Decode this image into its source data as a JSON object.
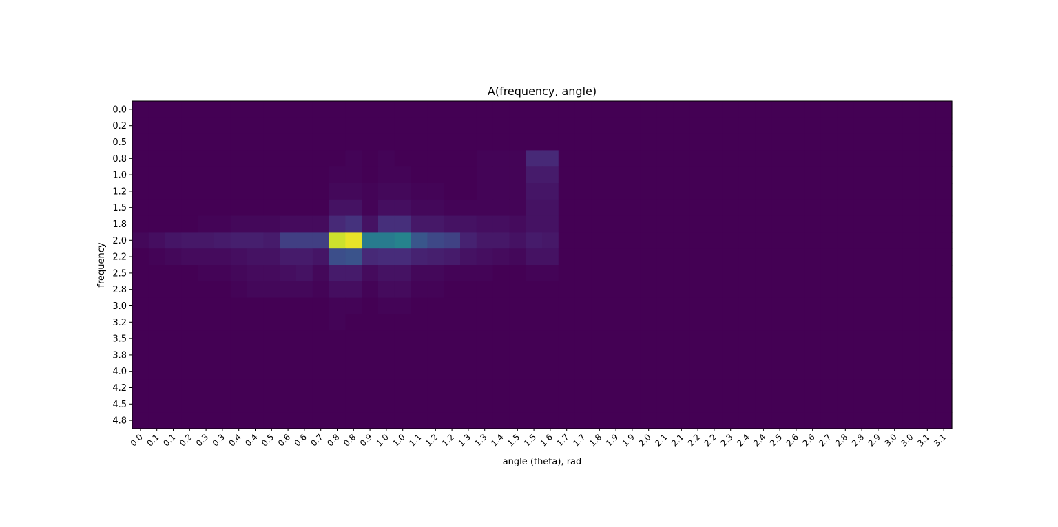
{
  "chart_data": {
    "type": "heatmap",
    "title": "A(frequency, angle)",
    "xlabel": "angle (theta), rad",
    "ylabel": "frequency",
    "colormap": "viridis",
    "x_tick_labels": [
      "0.0",
      "0.1",
      "0.1",
      "0.2",
      "0.3",
      "0.3",
      "0.4",
      "0.4",
      "0.5",
      "0.6",
      "0.6",
      "0.7",
      "0.8",
      "0.8",
      "0.9",
      "1.0",
      "1.0",
      "1.1",
      "1.2",
      "1.2",
      "1.3",
      "1.3",
      "1.4",
      "1.5",
      "1.5",
      "1.6",
      "1.7",
      "1.7",
      "1.8",
      "1.9",
      "1.9",
      "2.0",
      "2.1",
      "2.1",
      "2.2",
      "2.2",
      "2.3",
      "2.4",
      "2.4",
      "2.5",
      "2.6",
      "2.6",
      "2.7",
      "2.8",
      "2.8",
      "2.9",
      "3.0",
      "3.0",
      "3.1",
      "3.1"
    ],
    "y_tick_labels": [
      "0.0",
      "0.2",
      "0.5",
      "0.8",
      "1.0",
      "1.2",
      "1.5",
      "1.8",
      "2.0",
      "2.2",
      "2.5",
      "2.8",
      "3.0",
      "3.2",
      "3.5",
      "3.8",
      "4.0",
      "4.2",
      "4.5",
      "4.8"
    ],
    "value_range": [
      0,
      1
    ],
    "values": [
      [
        0,
        0,
        0,
        0,
        0,
        0,
        0,
        0,
        0,
        0,
        0,
        0,
        0,
        0,
        0,
        0,
        0,
        0,
        0,
        0,
        0,
        0,
        0,
        0,
        0,
        0,
        0,
        0,
        0,
        0,
        0,
        0,
        0,
        0,
        0,
        0,
        0,
        0,
        0,
        0,
        0,
        0,
        0,
        0,
        0,
        0,
        0,
        0,
        0,
        0
      ],
      [
        0,
        0,
        0,
        0,
        0,
        0,
        0,
        0,
        0,
        0,
        0,
        0,
        0,
        0,
        0,
        0,
        0,
        0,
        0,
        0,
        0,
        0,
        0,
        0,
        0,
        0,
        0,
        0,
        0,
        0,
        0,
        0,
        0,
        0,
        0,
        0,
        0,
        0,
        0,
        0,
        0,
        0,
        0,
        0,
        0,
        0,
        0,
        0,
        0,
        0
      ],
      [
        0,
        0,
        0,
        0,
        0,
        0,
        0,
        0,
        0,
        0,
        0,
        0,
        0,
        0,
        0,
        0,
        0,
        0,
        0,
        0,
        0,
        0,
        0,
        0,
        0,
        0,
        0,
        0,
        0,
        0,
        0,
        0,
        0,
        0,
        0,
        0,
        0,
        0,
        0,
        0,
        0,
        0,
        0,
        0,
        0,
        0,
        0,
        0,
        0,
        0
      ],
      [
        0,
        0,
        0,
        0,
        0,
        0,
        0,
        0,
        0,
        0,
        0,
        0,
        0,
        0.01,
        0,
        0.01,
        0,
        0,
        0,
        0,
        0,
        0.01,
        0.01,
        0.01,
        0.12,
        0.12,
        0,
        0,
        0,
        0,
        0,
        0,
        0,
        0,
        0,
        0,
        0,
        0,
        0,
        0,
        0,
        0,
        0,
        0,
        0,
        0,
        0,
        0,
        0,
        0
      ],
      [
        0,
        0,
        0,
        0,
        0,
        0,
        0,
        0,
        0,
        0,
        0,
        0,
        0.01,
        0.01,
        0,
        0.01,
        0.01,
        0,
        0,
        0,
        0,
        0.01,
        0.01,
        0.01,
        0.08,
        0.08,
        0,
        0,
        0,
        0,
        0,
        0,
        0,
        0,
        0,
        0,
        0,
        0,
        0,
        0,
        0,
        0,
        0,
        0,
        0,
        0,
        0,
        0,
        0,
        0
      ],
      [
        0,
        0,
        0,
        0,
        0,
        0,
        0,
        0,
        0,
        0,
        0,
        0,
        0.02,
        0.02,
        0.01,
        0.02,
        0.02,
        0.01,
        0.01,
        0,
        0,
        0.01,
        0.01,
        0.01,
        0.06,
        0.06,
        0,
        0,
        0,
        0,
        0,
        0,
        0,
        0,
        0,
        0,
        0,
        0,
        0,
        0,
        0,
        0,
        0,
        0,
        0,
        0,
        0,
        0,
        0,
        0
      ],
      [
        0,
        0,
        0,
        0,
        0,
        0,
        0,
        0,
        0,
        0,
        0,
        0,
        0.05,
        0.05,
        0.01,
        0.04,
        0.04,
        0.02,
        0.02,
        0.01,
        0.01,
        0.01,
        0.01,
        0.01,
        0.05,
        0.05,
        0,
        0,
        0,
        0,
        0,
        0,
        0,
        0,
        0,
        0,
        0,
        0,
        0,
        0,
        0,
        0,
        0,
        0,
        0,
        0,
        0,
        0,
        0,
        0
      ],
      [
        0,
        0,
        0,
        0,
        0.01,
        0.01,
        0.02,
        0.02,
        0.02,
        0.03,
        0.03,
        0.03,
        0.12,
        0.15,
        0.05,
        0.14,
        0.14,
        0.07,
        0.07,
        0.05,
        0.05,
        0.04,
        0.04,
        0.03,
        0.05,
        0.05,
        0,
        0,
        0,
        0,
        0,
        0,
        0,
        0,
        0,
        0,
        0,
        0,
        0,
        0,
        0,
        0,
        0,
        0,
        0,
        0,
        0,
        0,
        0,
        0
      ],
      [
        0.02,
        0.04,
        0.06,
        0.07,
        0.07,
        0.08,
        0.09,
        0.09,
        0.08,
        0.19,
        0.19,
        0.19,
        0.93,
        0.97,
        0.42,
        0.42,
        0.45,
        0.27,
        0.22,
        0.2,
        0.1,
        0.07,
        0.07,
        0.05,
        0.08,
        0.07,
        0,
        0,
        0,
        0,
        0,
        0,
        0,
        0,
        0,
        0,
        0,
        0,
        0,
        0,
        0,
        0,
        0,
        0,
        0,
        0,
        0,
        0,
        0,
        0
      ],
      [
        0,
        0.01,
        0.02,
        0.03,
        0.03,
        0.03,
        0.04,
        0.05,
        0.05,
        0.08,
        0.08,
        0.06,
        0.24,
        0.26,
        0.12,
        0.13,
        0.13,
        0.1,
        0.09,
        0.08,
        0.05,
        0.04,
        0.03,
        0.02,
        0.05,
        0.05,
        0,
        0,
        0,
        0,
        0,
        0,
        0,
        0,
        0,
        0,
        0,
        0,
        0,
        0,
        0,
        0,
        0,
        0,
        0,
        0,
        0,
        0,
        0,
        0
      ],
      [
        0,
        0,
        0,
        0,
        0.01,
        0.01,
        0.02,
        0.03,
        0.03,
        0.04,
        0.05,
        0.02,
        0.08,
        0.08,
        0.03,
        0.05,
        0.05,
        0.02,
        0.02,
        0.01,
        0.01,
        0.01,
        0,
        0,
        0.01,
        0.01,
        0,
        0,
        0,
        0,
        0,
        0,
        0,
        0,
        0,
        0,
        0,
        0,
        0,
        0,
        0,
        0,
        0,
        0,
        0,
        0,
        0,
        0,
        0,
        0
      ],
      [
        0,
        0,
        0,
        0,
        0,
        0,
        0.01,
        0.02,
        0.02,
        0.02,
        0.02,
        0.01,
        0.04,
        0.04,
        0.01,
        0.03,
        0.03,
        0.01,
        0.01,
        0,
        0,
        0,
        0,
        0,
        0,
        0,
        0,
        0,
        0,
        0,
        0,
        0,
        0,
        0,
        0,
        0,
        0,
        0,
        0,
        0,
        0,
        0,
        0,
        0,
        0,
        0,
        0,
        0,
        0,
        0
      ],
      [
        0,
        0,
        0,
        0,
        0,
        0,
        0,
        0,
        0,
        0,
        0,
        0,
        0.01,
        0.01,
        0,
        0.01,
        0.01,
        0,
        0,
        0,
        0,
        0,
        0,
        0,
        0,
        0,
        0,
        0,
        0,
        0,
        0,
        0,
        0,
        0,
        0,
        0,
        0,
        0,
        0,
        0,
        0,
        0,
        0,
        0,
        0,
        0,
        0,
        0,
        0,
        0
      ],
      [
        0,
        0,
        0,
        0,
        0,
        0,
        0,
        0,
        0,
        0,
        0,
        0,
        0.01,
        0,
        0,
        0,
        0,
        0,
        0,
        0,
        0,
        0,
        0,
        0,
        0,
        0,
        0,
        0,
        0,
        0,
        0,
        0,
        0,
        0,
        0,
        0,
        0,
        0,
        0,
        0,
        0,
        0,
        0,
        0,
        0,
        0,
        0,
        0,
        0,
        0
      ],
      [
        0,
        0,
        0,
        0,
        0,
        0,
        0,
        0,
        0,
        0,
        0,
        0,
        0,
        0,
        0,
        0,
        0,
        0,
        0,
        0,
        0,
        0,
        0,
        0,
        0,
        0,
        0,
        0,
        0,
        0,
        0,
        0,
        0,
        0,
        0,
        0,
        0,
        0,
        0,
        0,
        0,
        0,
        0,
        0,
        0,
        0,
        0,
        0,
        0,
        0
      ],
      [
        0,
        0,
        0,
        0,
        0,
        0,
        0,
        0,
        0,
        0,
        0,
        0,
        0,
        0,
        0,
        0,
        0,
        0,
        0,
        0,
        0,
        0,
        0,
        0,
        0,
        0,
        0,
        0,
        0,
        0,
        0,
        0,
        0,
        0,
        0,
        0,
        0,
        0,
        0,
        0,
        0,
        0,
        0,
        0,
        0,
        0,
        0,
        0,
        0,
        0
      ],
      [
        0,
        0,
        0,
        0,
        0,
        0,
        0,
        0,
        0,
        0,
        0,
        0,
        0,
        0,
        0,
        0,
        0,
        0,
        0,
        0,
        0,
        0,
        0,
        0,
        0,
        0,
        0,
        0,
        0,
        0,
        0,
        0,
        0,
        0,
        0,
        0,
        0,
        0,
        0,
        0,
        0,
        0,
        0,
        0,
        0,
        0,
        0,
        0,
        0,
        0
      ],
      [
        0,
        0,
        0,
        0,
        0,
        0,
        0,
        0,
        0,
        0,
        0,
        0,
        0,
        0,
        0,
        0,
        0,
        0,
        0,
        0,
        0,
        0,
        0,
        0,
        0,
        0,
        0,
        0,
        0,
        0,
        0,
        0,
        0,
        0,
        0,
        0,
        0,
        0,
        0,
        0,
        0,
        0,
        0,
        0,
        0,
        0,
        0,
        0,
        0,
        0
      ],
      [
        0,
        0,
        0,
        0,
        0,
        0,
        0,
        0,
        0,
        0,
        0,
        0,
        0,
        0,
        0,
        0,
        0,
        0,
        0,
        0,
        0,
        0,
        0,
        0,
        0,
        0,
        0,
        0,
        0,
        0,
        0,
        0,
        0,
        0,
        0,
        0,
        0,
        0,
        0,
        0,
        0,
        0,
        0,
        0,
        0,
        0,
        0,
        0,
        0,
        0
      ],
      [
        0,
        0,
        0,
        0,
        0,
        0,
        0,
        0,
        0,
        0,
        0,
        0,
        0,
        0,
        0,
        0,
        0,
        0,
        0,
        0,
        0,
        0,
        0,
        0,
        0,
        0,
        0,
        0,
        0,
        0,
        0,
        0,
        0,
        0,
        0,
        0,
        0,
        0,
        0,
        0,
        0,
        0,
        0,
        0,
        0,
        0,
        0,
        0,
        0,
        0
      ]
    ]
  }
}
